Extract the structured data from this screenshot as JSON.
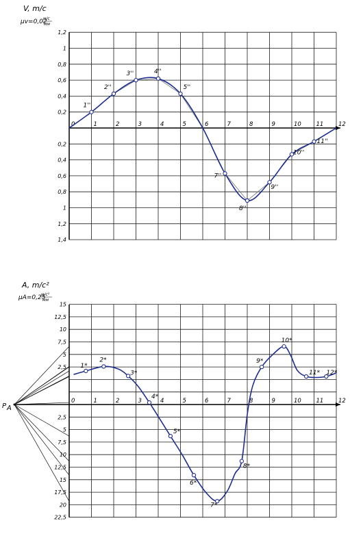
{
  "chart_data": [
    {
      "type": "line",
      "title": "V, m/c",
      "scale_label": "μv=0,02",
      "scale_unit": "м/с",
      "scale_denominator": "мм",
      "x_ticks": [
        "0",
        "1",
        "2",
        "3",
        "4",
        "5",
        "6",
        "7",
        "8",
        "9",
        "10",
        "11",
        "12"
      ],
      "y_ticks_top": [
        "1,2",
        "1",
        "0,8",
        "0,6",
        "0,4",
        "0,2"
      ],
      "y_ticks_bottom": [
        "0,2",
        "0,4",
        "0,6",
        "0,8",
        "1",
        "1,2",
        "1,4"
      ],
      "xlim": [
        0,
        12
      ],
      "ylim": [
        -1.4,
        1.2
      ],
      "grid": true,
      "points": [
        {
          "x": 0,
          "y": 0,
          "label": ""
        },
        {
          "x": 1,
          "y": 0.2,
          "label": "1''"
        },
        {
          "x": 2,
          "y": 0.43,
          "label": "2''"
        },
        {
          "x": 3,
          "y": 0.6,
          "label": "3''"
        },
        {
          "x": 4,
          "y": 0.62,
          "label": "4''"
        },
        {
          "x": 5,
          "y": 0.43,
          "label": "5''"
        },
        {
          "x": 6,
          "y": 0,
          "label": ""
        },
        {
          "x": 7,
          "y": -0.57,
          "label": "7''"
        },
        {
          "x": 8,
          "y": -0.91,
          "label": "8''"
        },
        {
          "x": 9,
          "y": -0.68,
          "label": "9''"
        },
        {
          "x": 10,
          "y": -0.33,
          "label": "10''"
        },
        {
          "x": 11,
          "y": -0.17,
          "label": "11''"
        },
        {
          "x": 12,
          "y": 0,
          "label": ""
        }
      ]
    },
    {
      "type": "line",
      "title": "A, m/c²",
      "scale_label": "μA=0,25",
      "scale_unit": "м/с²",
      "scale_denominator": "мм",
      "pole_label": "P",
      "pole_subscript": "A",
      "x_ticks": [
        "0",
        "1",
        "2",
        "3",
        "4",
        "5",
        "6",
        "7",
        "8",
        "9",
        "10",
        "11",
        "12"
      ],
      "y_ticks_top": [
        "15",
        "12,5",
        "10",
        "7,5",
        "5",
        "2,5"
      ],
      "y_ticks_bottom": [
        "2,5",
        "5",
        "7,5",
        "10",
        "12,5",
        "15",
        "17,5",
        "20",
        "22,5"
      ],
      "xlim": [
        0,
        12
      ],
      "ylim": [
        -22.5,
        17.5
      ],
      "grid": true,
      "points": [
        {
          "x": 0.75,
          "y": 6.7,
          "label": "1*"
        },
        {
          "x": 1.55,
          "y": 7.6,
          "label": "2*"
        },
        {
          "x": 2.65,
          "y": 5.7,
          "label": "3*"
        },
        {
          "x": 3.6,
          "y": 0.4,
          "label": "4*"
        },
        {
          "x": 4.55,
          "y": -6.3,
          "label": "5*"
        },
        {
          "x": 5.6,
          "y": -14.1,
          "label": "6*"
        },
        {
          "x": 6.65,
          "y": -19.3,
          "label": "7*"
        },
        {
          "x": 7.75,
          "y": -11.3,
          "label": "8*"
        },
        {
          "x": 8.65,
          "y": 7.5,
          "label": "9*"
        },
        {
          "x": 9.65,
          "y": 11.6,
          "label": "10*"
        },
        {
          "x": 10.65,
          "y": 5.6,
          "label": "11*"
        },
        {
          "x": 11.55,
          "y": 5.6,
          "label": "12*"
        }
      ],
      "curve": [
        [
          0.2,
          6.0
        ],
        [
          0.75,
          6.7
        ],
        [
          1.55,
          7.6
        ],
        [
          2.2,
          7.1
        ],
        [
          2.65,
          5.7
        ],
        [
          3.1,
          3.6
        ],
        [
          3.6,
          0.4
        ],
        [
          4.1,
          -3.1
        ],
        [
          4.55,
          -6.3
        ],
        [
          5.1,
          -10.2
        ],
        [
          5.6,
          -14.1
        ],
        [
          6.15,
          -17.6
        ],
        [
          6.65,
          -19.3
        ],
        [
          7.1,
          -17.3
        ],
        [
          7.45,
          -13.8
        ],
        [
          7.75,
          -11.3
        ],
        [
          8.0,
          -2.0
        ],
        [
          8.25,
          3.8
        ],
        [
          8.65,
          7.5
        ],
        [
          9.15,
          10.0
        ],
        [
          9.65,
          11.6
        ],
        [
          9.95,
          9.8
        ],
        [
          10.25,
          6.8
        ],
        [
          10.65,
          5.6
        ],
        [
          11.1,
          5.4
        ],
        [
          11.55,
          5.6
        ],
        [
          12.0,
          6.3
        ]
      ]
    }
  ]
}
